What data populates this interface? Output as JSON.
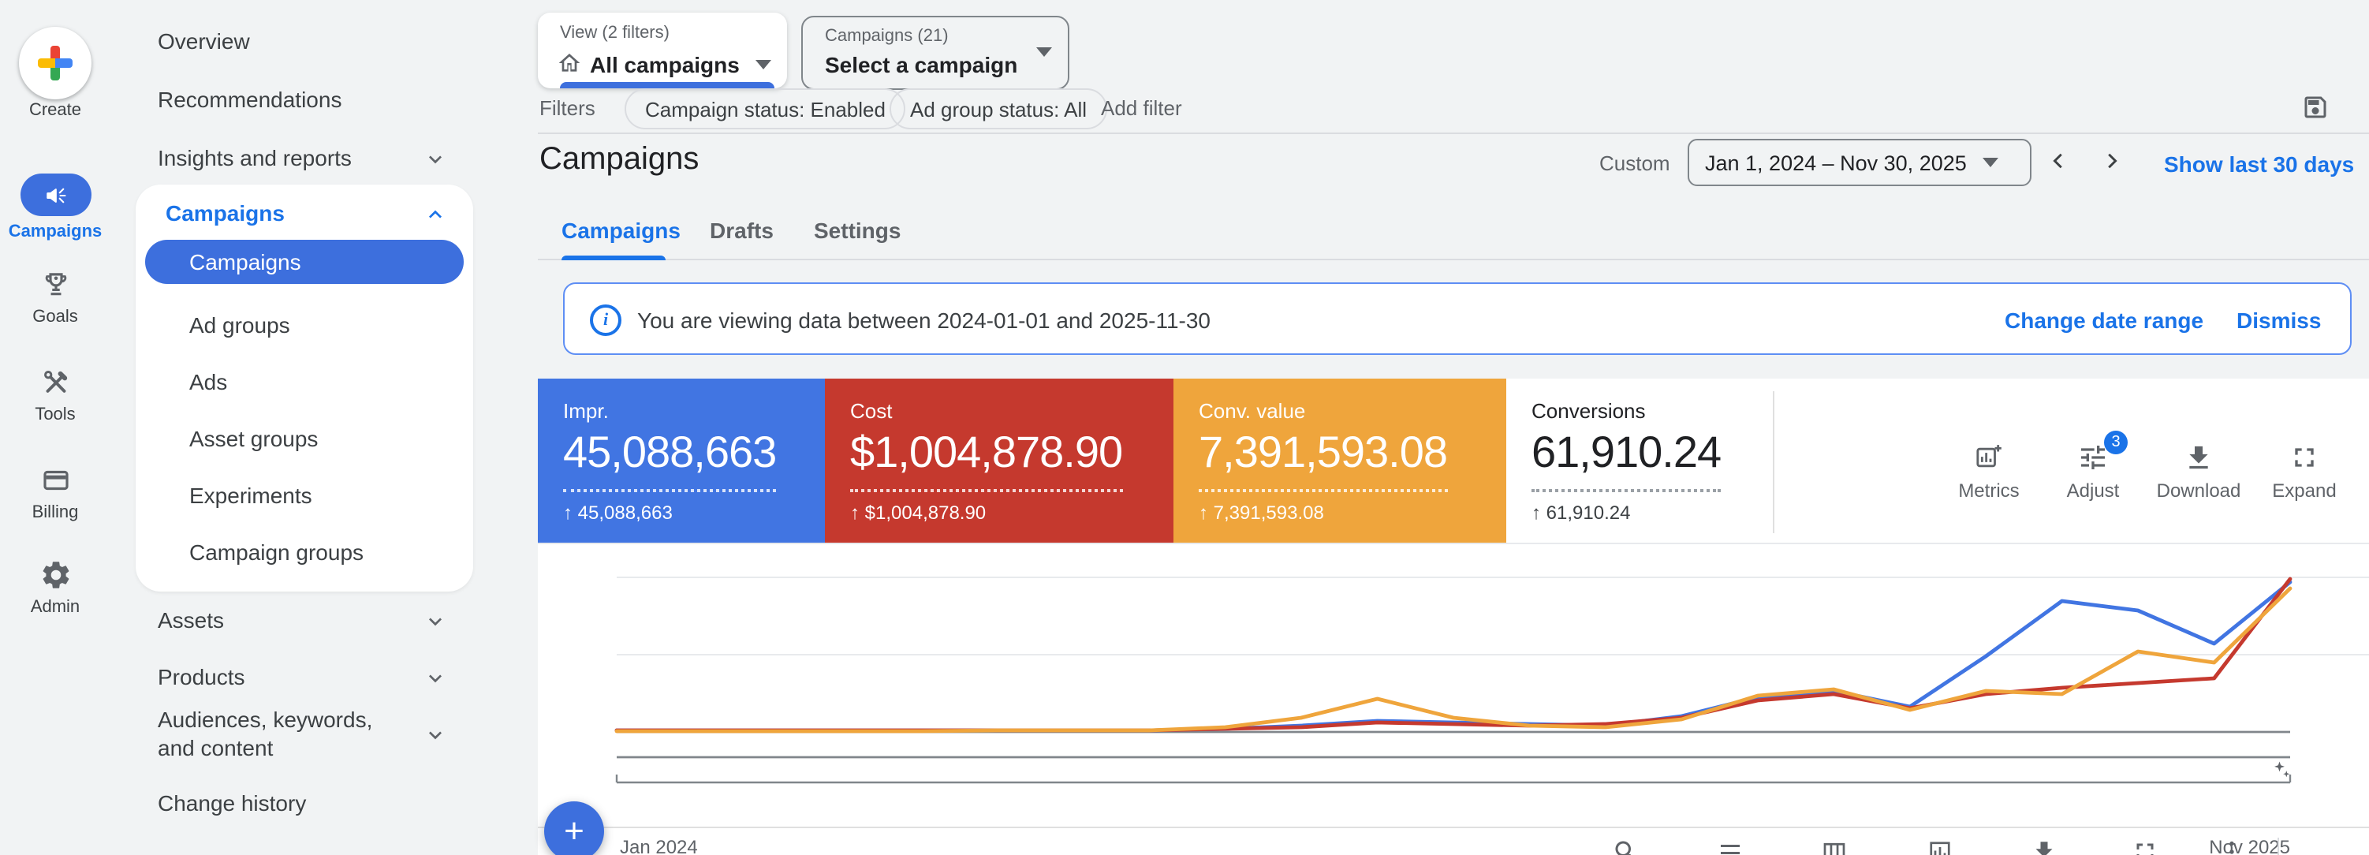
{
  "colors": {
    "background": "#f1f3f4",
    "surface": "#ffffff",
    "primary_blue": "#1a73e8",
    "selected_pill_blue": "#3d6fdd",
    "score_blue": "#4175e2",
    "score_red": "#c5392e",
    "score_yellow": "#efa53c",
    "text_primary": "#202124",
    "text_secondary": "#5f6368"
  },
  "rail": {
    "create": {
      "label": "Create"
    },
    "items": [
      {
        "label": "Campaigns",
        "active": true
      },
      {
        "label": "Goals"
      },
      {
        "label": "Tools"
      },
      {
        "label": "Billing"
      },
      {
        "label": "Admin"
      }
    ]
  },
  "sidenav": {
    "items_top": [
      {
        "label": "Overview"
      },
      {
        "label": "Recommendations"
      },
      {
        "label": "Insights and reports",
        "expandable": true
      }
    ],
    "campaigns_group": {
      "label": "Campaigns",
      "expanded": true,
      "children": [
        {
          "label": "Campaigns",
          "selected": true
        },
        {
          "label": "Ad groups"
        },
        {
          "label": "Ads"
        },
        {
          "label": "Asset groups"
        },
        {
          "label": "Experiments"
        },
        {
          "label": "Campaign groups"
        }
      ]
    },
    "items_bottom": [
      {
        "label": "Assets",
        "expandable": true
      },
      {
        "label": "Products",
        "expandable": true
      },
      {
        "label": "Audiences, keywords, and content",
        "expandable": true
      },
      {
        "label": "Change history"
      }
    ]
  },
  "topbar": {
    "view_selector": {
      "label": "View (2 filters)",
      "value": "All campaigns"
    },
    "campaign_selector": {
      "label": "Campaigns (21)",
      "value": "Select a campaign"
    }
  },
  "filters": {
    "label": "Filters",
    "chips": [
      {
        "text": "Campaign status: Enabled"
      },
      {
        "text": "Ad group status: All"
      }
    ],
    "add_label": "Add filter"
  },
  "page": {
    "title": "Campaigns",
    "tabs": [
      {
        "label": "Campaigns",
        "active": true
      },
      {
        "label": "Drafts"
      },
      {
        "label": "Settings"
      }
    ]
  },
  "daterange": {
    "mode": "Custom",
    "value": "Jan 1, 2024 – Nov 30, 2025",
    "quick_link": "Show last 30 days"
  },
  "banner": {
    "message": "You are viewing data between 2024-01-01 and 2025-11-30",
    "change_label": "Change date range",
    "dismiss_label": "Dismiss"
  },
  "scorecards": {
    "cards": [
      {
        "label": "Impr.",
        "value": "45,088,663",
        "delta": "↑ 45,088,663",
        "bg": "#4175e2",
        "text": "#ffffff"
      },
      {
        "label": "Cost",
        "value": "$1,004,878.90",
        "delta": "↑ $1,004,878.90",
        "bg": "#c5392e",
        "text": "#ffffff"
      },
      {
        "label": "Conv. value",
        "value": "7,391,593.08",
        "delta": "↑ 7,391,593.08",
        "bg": "#efa53c",
        "text": "#ffffff"
      },
      {
        "label": "Conversions",
        "value": "61,910.24",
        "delta": "↑ 61,910.24",
        "bg": "#ffffff",
        "text": "#202124"
      }
    ]
  },
  "chart_toolbar": {
    "items": [
      {
        "label": "Metrics"
      },
      {
        "label": "Adjust",
        "badge": "3"
      },
      {
        "label": "Download"
      },
      {
        "label": "Expand"
      }
    ]
  },
  "chart": {
    "x_start_label": "Jan 2024",
    "x_end_label": "Nov 2025"
  },
  "chart_data": {
    "type": "line",
    "title": "",
    "xlabel": "",
    "ylabel": "",
    "note": "y values are relative heights 0-100 (axes unlabeled in UI); x is monthly Jan 2024 - Nov 2025",
    "ylim": [
      0,
      100
    ],
    "grid": "horizontal",
    "x": [
      "Jan 2024",
      "Feb 2024",
      "Mar 2024",
      "Apr 2024",
      "May 2024",
      "Jun 2024",
      "Jul 2024",
      "Aug 2024",
      "Sep 2024",
      "Oct 2024",
      "Nov 2024",
      "Dec 2024",
      "Jan 2025",
      "Feb 2025",
      "Mar 2025",
      "Apr 2025",
      "May 2025",
      "Jun 2025",
      "Jul 2025",
      "Aug 2025",
      "Sep 2025",
      "Oct 2025",
      "Nov 2025"
    ],
    "series": [
      {
        "name": "Impr.",
        "color": "#4175e2",
        "values": [
          1,
          1,
          1,
          1,
          1,
          1,
          1,
          1,
          2,
          4,
          7,
          6,
          5,
          4,
          10,
          22,
          26,
          16,
          48,
          83,
          77,
          56,
          95
        ]
      },
      {
        "name": "Cost",
        "color": "#c5392e",
        "values": [
          1,
          1,
          1,
          1,
          1,
          1,
          1,
          1,
          2,
          3,
          6,
          5,
          4,
          5,
          9,
          20,
          24,
          15,
          24,
          28,
          31,
          34,
          97
        ]
      },
      {
        "name": "Conv. value",
        "color": "#efa53c",
        "values": [
          0.5,
          0.5,
          0.5,
          0.5,
          0.5,
          1,
          1,
          1,
          3,
          9,
          21,
          9,
          4,
          3,
          8,
          23,
          27,
          14,
          26,
          24,
          51,
          44,
          91
        ]
      }
    ]
  },
  "table_toolbar": {
    "icons": [
      "search",
      "segment",
      "columns",
      "chart",
      "download",
      "expand",
      "more"
    ]
  },
  "fab": {
    "label": "+"
  }
}
